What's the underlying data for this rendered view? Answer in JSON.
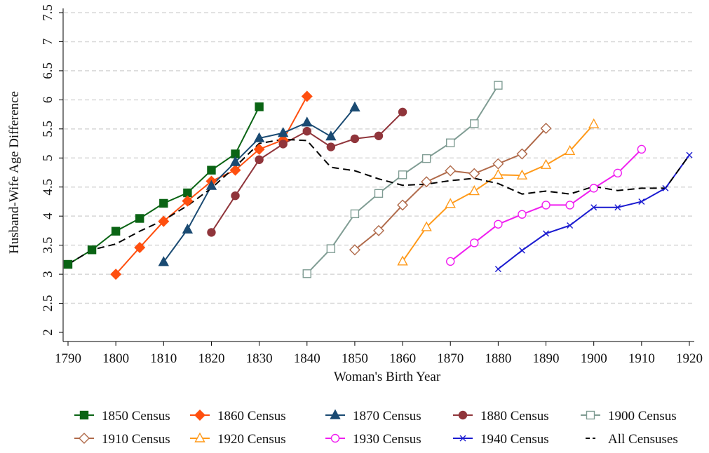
{
  "chart_data": {
    "type": "line",
    "x_label": "Woman's Birth Year",
    "y_label": "Husband-Wife Age Difference",
    "xlim": [
      1790,
      1920
    ],
    "xticks": [
      1790,
      1800,
      1810,
      1820,
      1830,
      1840,
      1850,
      1860,
      1870,
      1880,
      1890,
      1900,
      1910,
      1920
    ],
    "ylim": [
      2,
      7.5
    ],
    "yticks": [
      2,
      2.5,
      3,
      3.5,
      4,
      4.5,
      5,
      5.5,
      6,
      6.5,
      7,
      7.5
    ],
    "grid": true,
    "series": [
      {
        "name": "1850 Census",
        "color": "#0a6414",
        "marker": "square",
        "filled": true,
        "dashed": false,
        "x": [
          1790,
          1795,
          1800,
          1805,
          1810,
          1815,
          1820,
          1825,
          1830
        ],
        "values": [
          3.17,
          3.42,
          3.74,
          3.96,
          4.22,
          4.4,
          4.79,
          5.07,
          5.88
        ]
      },
      {
        "name": "1860 Census",
        "color": "#ff4f0f",
        "marker": "diamond",
        "filled": true,
        "dashed": false,
        "x": [
          1800,
          1805,
          1810,
          1815,
          1820,
          1825,
          1830,
          1835,
          1840
        ],
        "values": [
          3.0,
          3.46,
          3.91,
          4.26,
          4.6,
          4.79,
          5.15,
          5.31,
          6.06
        ]
      },
      {
        "name": "1870 Census",
        "color": "#1a4a72",
        "marker": "triangle",
        "filled": true,
        "dashed": false,
        "x": [
          1810,
          1815,
          1820,
          1825,
          1830,
          1835,
          1840,
          1845,
          1850
        ],
        "values": [
          3.21,
          3.77,
          4.52,
          4.93,
          5.34,
          5.43,
          5.61,
          5.37,
          5.87
        ]
      },
      {
        "name": "1880 Census",
        "color": "#90353b",
        "marker": "circle",
        "filled": true,
        "dashed": false,
        "x": [
          1820,
          1825,
          1830,
          1835,
          1840,
          1845,
          1850,
          1855,
          1860
        ],
        "values": [
          3.72,
          4.35,
          4.97,
          5.24,
          5.46,
          5.19,
          5.33,
          5.38,
          5.79
        ]
      },
      {
        "name": "1900 Census",
        "color": "#7f9c93",
        "marker": "square",
        "filled": false,
        "dashed": false,
        "x": [
          1840,
          1845,
          1850,
          1855,
          1860,
          1865,
          1870,
          1875,
          1880
        ],
        "values": [
          3.01,
          3.44,
          4.04,
          4.39,
          4.71,
          4.99,
          5.26,
          5.59,
          6.25
        ]
      },
      {
        "name": "1910 Census",
        "color": "#b06a4a",
        "marker": "diamond",
        "filled": false,
        "dashed": false,
        "x": [
          1850,
          1855,
          1860,
          1865,
          1870,
          1875,
          1880,
          1885,
          1890
        ],
        "values": [
          3.42,
          3.75,
          4.19,
          4.59,
          4.78,
          4.73,
          4.9,
          5.07,
          5.51
        ]
      },
      {
        "name": "1920 Census",
        "color": "#ff9a1a",
        "marker": "triangle",
        "filled": false,
        "dashed": false,
        "x": [
          1860,
          1865,
          1870,
          1875,
          1880,
          1885,
          1890,
          1895,
          1900
        ],
        "values": [
          3.22,
          3.81,
          4.21,
          4.43,
          4.71,
          4.7,
          4.88,
          5.12,
          5.58
        ]
      },
      {
        "name": "1930 Census",
        "color": "#f01ef0",
        "marker": "circle",
        "filled": false,
        "dashed": false,
        "x": [
          1870,
          1875,
          1880,
          1885,
          1890,
          1895,
          1900,
          1905,
          1910
        ],
        "values": [
          3.22,
          3.54,
          3.86,
          4.03,
          4.19,
          4.19,
          4.48,
          4.74,
          5.15
        ]
      },
      {
        "name": "1940 Census",
        "color": "#1a1ad0",
        "marker": "x",
        "filled": false,
        "dashed": false,
        "x": [
          1880,
          1885,
          1890,
          1895,
          1900,
          1905,
          1910,
          1915,
          1920
        ],
        "values": [
          3.09,
          3.41,
          3.7,
          3.84,
          4.15,
          4.15,
          4.25,
          4.48,
          5.05
        ]
      },
      {
        "name": "All Censuses",
        "color": "#000000",
        "marker": "none",
        "filled": false,
        "dashed": true,
        "x": [
          1790,
          1795,
          1800,
          1805,
          1810,
          1815,
          1820,
          1825,
          1830,
          1835,
          1840,
          1845,
          1850,
          1855,
          1860,
          1865,
          1870,
          1875,
          1880,
          1885,
          1890,
          1895,
          1900,
          1905,
          1910,
          1915,
          1920
        ],
        "values": [
          3.17,
          3.42,
          3.52,
          3.74,
          3.93,
          4.18,
          4.48,
          4.85,
          5.25,
          5.32,
          5.3,
          4.84,
          4.78,
          4.64,
          4.53,
          4.55,
          4.61,
          4.65,
          4.56,
          4.38,
          4.43,
          4.38,
          4.51,
          4.44,
          4.48,
          4.48,
          5.05
        ]
      }
    ]
  }
}
